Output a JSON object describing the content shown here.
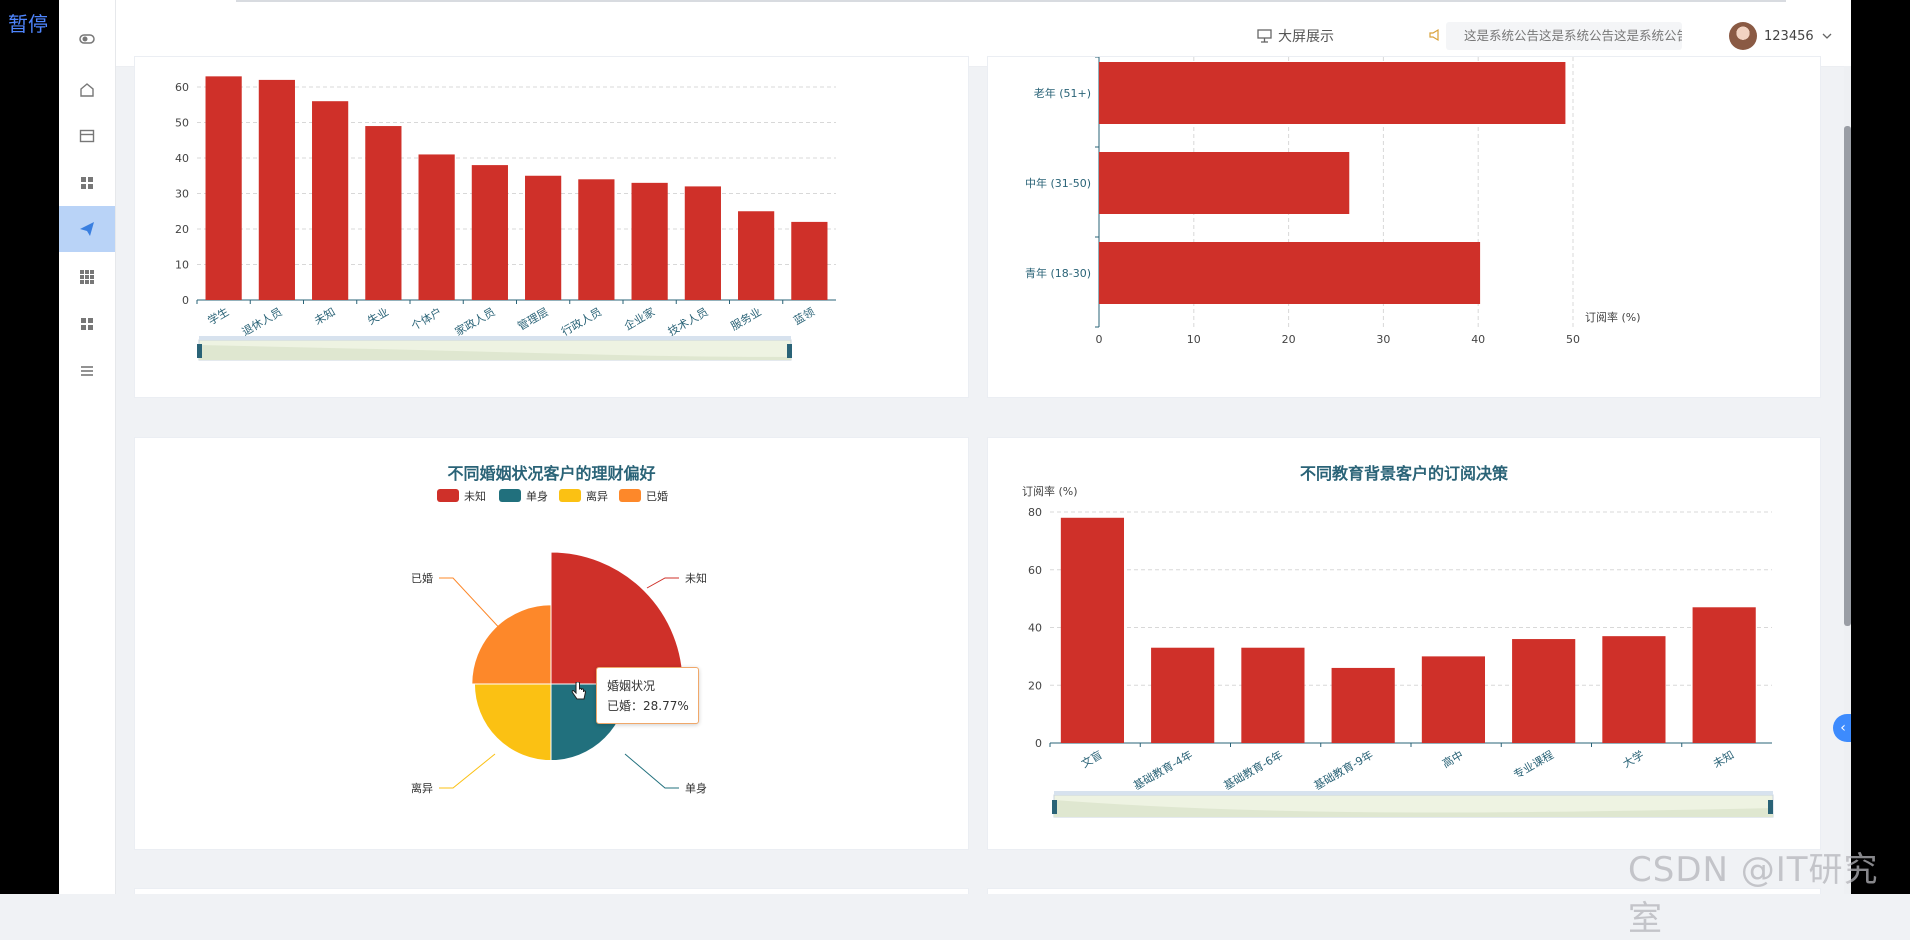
{
  "overlay": {
    "pause_label": "暂停",
    "watermark": "CSDN @IT研究室"
  },
  "topbar": {
    "bigscreen_label": "大屏展示",
    "notice_text": "这是系统公告这是系统公告这是系统公告",
    "username": "123456"
  },
  "sidebar": {
    "items": [
      {
        "icon": "toggle-icon"
      },
      {
        "icon": "home-icon"
      },
      {
        "icon": "card-icon"
      },
      {
        "icon": "grid-icon"
      },
      {
        "icon": "send-icon",
        "active": true
      },
      {
        "icon": "apps-icon"
      },
      {
        "icon": "grid-icon"
      },
      {
        "icon": "menu-icon"
      }
    ]
  },
  "colors": {
    "bar": "#cf3029",
    "teal": "#21707d",
    "yellow": "#fbc113",
    "orange": "#fd882a",
    "title": "#2a6377"
  },
  "chart_data": [
    {
      "type": "bar",
      "categories": [
        "学生",
        "退休人员",
        "未知",
        "失业",
        "个体户",
        "家政人员",
        "管理层",
        "行政人员",
        "企业家",
        "技术人员",
        "服务业",
        "蓝领"
      ],
      "values": [
        63,
        62,
        56,
        49,
        41,
        38,
        35,
        34,
        33,
        32,
        25,
        22
      ],
      "ylim": [
        0,
        60
      ],
      "yticks": [
        "0",
        "10",
        "20",
        "30",
        "40",
        "50",
        "60"
      ]
    },
    {
      "type": "bar",
      "orientation": "horizontal",
      "categories": [
        "老年 (51+)",
        "中年 (31-50)",
        "青年 (18-30)"
      ],
      "values": [
        49.2,
        26.4,
        40.2
      ],
      "xlabel": "订阅率 (%)",
      "xticks": [
        "0",
        "10",
        "20",
        "30",
        "40",
        "50"
      ],
      "xlim": [
        0,
        50
      ]
    },
    {
      "type": "pie",
      "title": "不同婚姻状况客户的理财偏好",
      "legend": [
        "未知",
        "单身",
        "离异",
        "已婚"
      ],
      "slices": [
        {
          "label": "未知",
          "angle_share": 0.25,
          "radius_share": 1.0,
          "color": "#cf3029"
        },
        {
          "label": "单身",
          "angle_share": 0.25,
          "radius_share": 0.58,
          "color": "#21707d"
        },
        {
          "label": "离异",
          "angle_share": 0.25,
          "radius_share": 0.58,
          "color": "#fbc113"
        },
        {
          "label": "已婚",
          "angle_share": 0.25,
          "radius_share": 0.6,
          "color": "#fd882a"
        }
      ],
      "tooltip": {
        "title": "婚姻状况",
        "line": "已婚：28.77%"
      }
    },
    {
      "type": "bar",
      "title": "不同教育背景客户的订阅决策",
      "ylabel": "订阅率 (%)",
      "categories": [
        "文盲",
        "基础教育-4年",
        "基础教育-6年",
        "基础教育-9年",
        "高中",
        "专业课程",
        "大学",
        "未知"
      ],
      "values": [
        78,
        33,
        33,
        26,
        30,
        36,
        37,
        47
      ],
      "ylim": [
        0,
        80
      ],
      "yticks": [
        "0",
        "20",
        "40",
        "60",
        "80"
      ]
    }
  ]
}
